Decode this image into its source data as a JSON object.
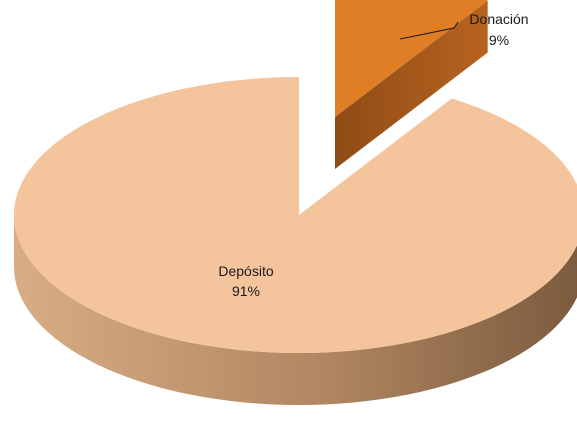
{
  "chart_data": {
    "type": "pie",
    "title": "",
    "exploded": true,
    "three_d": true,
    "slices": [
      {
        "label": "Depósito",
        "value": 91,
        "pct_label": "91%",
        "color": "#f4c49c",
        "side_color": "#c79a72"
      },
      {
        "label": "Donación",
        "value": 9,
        "pct_label": "9%",
        "color": "#e07e25",
        "side_color": "#9e5519"
      }
    ],
    "legend": "none"
  }
}
